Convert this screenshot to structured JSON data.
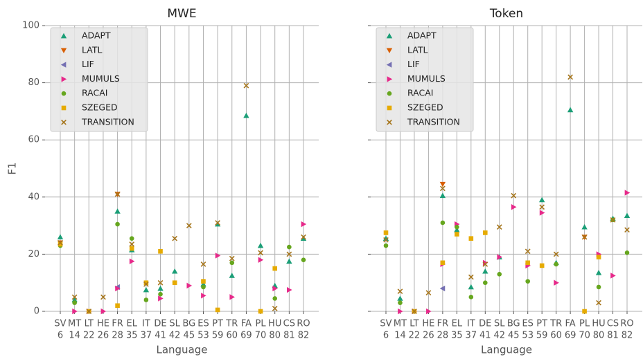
{
  "chart_data": [
    {
      "type": "scatter",
      "title": "MWE",
      "xlabel": "Language",
      "ylabel": "F1",
      "categories": [
        [
          "SV",
          "6"
        ],
        [
          "MT",
          "14"
        ],
        [
          "LT",
          "22"
        ],
        [
          "HE",
          "26"
        ],
        [
          "FR",
          "28"
        ],
        [
          "EL",
          "35"
        ],
        [
          "IT",
          "37"
        ],
        [
          "DE",
          "41"
        ],
        [
          "SL",
          "42"
        ],
        [
          "BG",
          "45"
        ],
        [
          "ES",
          "53"
        ],
        [
          "PT",
          "59"
        ],
        [
          "TR",
          "60"
        ],
        [
          "FA",
          "69"
        ],
        [
          "PL",
          "70"
        ],
        [
          "HU",
          "80"
        ],
        [
          "CS",
          "81"
        ],
        [
          "RO",
          "82"
        ]
      ],
      "ylim": [
        0,
        100
      ],
      "yticks": [
        0,
        20,
        40,
        60,
        80,
        100
      ],
      "grid": true,
      "legend": "upper left",
      "series": [
        {
          "name": "ADAPT",
          "color": "#1b9e77",
          "marker": "triangle-up",
          "values": [
            26,
            4,
            null,
            null,
            35,
            21.5,
            7.5,
            8,
            14,
            null,
            9.5,
            30.5,
            12.5,
            68.5,
            23,
            9,
            17.5,
            25.5
          ]
        },
        {
          "name": "LATL",
          "color": "#d95f02",
          "marker": "triangle-down",
          "values": [
            24,
            null,
            null,
            null,
            41,
            null,
            null,
            null,
            null,
            null,
            null,
            null,
            null,
            null,
            null,
            null,
            null,
            null
          ]
        },
        {
          "name": "LIF",
          "color": "#7570b3",
          "marker": "triangle-left",
          "values": [
            null,
            null,
            null,
            null,
            8.5,
            null,
            null,
            null,
            null,
            null,
            null,
            null,
            null,
            null,
            null,
            null,
            null,
            null
          ]
        },
        {
          "name": "MUMULS",
          "color": "#e7298a",
          "marker": "triangle-right",
          "values": [
            null,
            0,
            0,
            0,
            8,
            17.5,
            null,
            4.5,
            null,
            9,
            5.5,
            19.5,
            5,
            null,
            18,
            8,
            7.5,
            30.5
          ]
        },
        {
          "name": "RACAI",
          "color": "#66a61e",
          "marker": "circle",
          "values": [
            23,
            3,
            null,
            null,
            30.5,
            25.5,
            4,
            6,
            10,
            null,
            8.5,
            null,
            17,
            null,
            null,
            4.5,
            22.5,
            18
          ]
        },
        {
          "name": "SZEGED",
          "color": "#e6ab02",
          "marker": "square",
          "values": [
            23.5,
            null,
            0,
            null,
            2,
            22,
            10,
            21,
            10,
            null,
            10.5,
            0.5,
            null,
            null,
            0,
            15,
            null,
            null
          ]
        },
        {
          "name": "TRANSITION",
          "color": "#a6761d",
          "marker": "x",
          "values": [
            24,
            5,
            0,
            5,
            41,
            23.5,
            9.5,
            10,
            25.5,
            30,
            16.5,
            31,
            18.5,
            79,
            20.5,
            1,
            20,
            26
          ]
        }
      ]
    },
    {
      "type": "scatter",
      "title": "Token",
      "xlabel": "Language",
      "categories": [
        [
          "SV",
          "6"
        ],
        [
          "MT",
          "14"
        ],
        [
          "LT",
          "22"
        ],
        [
          "HE",
          "26"
        ],
        [
          "FR",
          "28"
        ],
        [
          "EL",
          "35"
        ],
        [
          "IT",
          "37"
        ],
        [
          "DE",
          "41"
        ],
        [
          "SL",
          "42"
        ],
        [
          "BG",
          "45"
        ],
        [
          "ES",
          "53"
        ],
        [
          "PT",
          "59"
        ],
        [
          "TR",
          "60"
        ],
        [
          "FA",
          "69"
        ],
        [
          "PL",
          "70"
        ],
        [
          "HU",
          "80"
        ],
        [
          "CS",
          "81"
        ],
        [
          "RO",
          "82"
        ]
      ],
      "ylim": [
        0,
        100
      ],
      "grid": true,
      "legend": "upper left",
      "series": [
        {
          "name": "ADAPT",
          "color": "#1b9e77",
          "marker": "triangle-up",
          "values": [
            25.5,
            4.5,
            null,
            null,
            40.5,
            28.5,
            8.5,
            14,
            19,
            null,
            null,
            39,
            17,
            70.5,
            29.5,
            13.5,
            32.5,
            33.5
          ]
        },
        {
          "name": "LATL",
          "color": "#d95f02",
          "marker": "triangle-down",
          "values": [
            null,
            null,
            null,
            null,
            44.5,
            null,
            null,
            null,
            null,
            null,
            null,
            null,
            null,
            null,
            26,
            null,
            null,
            null
          ]
        },
        {
          "name": "LIF",
          "color": "#7570b3",
          "marker": "triangle-left",
          "values": [
            null,
            null,
            null,
            null,
            8,
            null,
            null,
            null,
            null,
            null,
            null,
            null,
            null,
            null,
            null,
            null,
            null,
            null
          ]
        },
        {
          "name": "MUMULS",
          "color": "#e7298a",
          "marker": "triangle-right",
          "values": [
            null,
            0,
            0,
            0,
            16.5,
            30.5,
            null,
            17,
            19,
            36.5,
            16,
            34.5,
            10,
            null,
            null,
            20,
            12.5,
            41.5
          ]
        },
        {
          "name": "RACAI",
          "color": "#66a61e",
          "marker": "circle",
          "values": [
            23,
            3,
            null,
            null,
            31,
            29.5,
            5,
            10,
            13,
            null,
            10.5,
            null,
            16.5,
            null,
            null,
            8.5,
            32,
            20.5
          ]
        },
        {
          "name": "SZEGED",
          "color": "#e6ab02",
          "marker": "square",
          "values": [
            27.5,
            null,
            0,
            null,
            17,
            27,
            25.5,
            27.5,
            null,
            null,
            17,
            16,
            null,
            null,
            0,
            19,
            null,
            null
          ]
        },
        {
          "name": "TRANSITION",
          "color": "#a6761d",
          "marker": "x",
          "values": [
            25,
            7,
            0,
            6.5,
            43,
            null,
            12,
            16.5,
            29.5,
            40.5,
            21,
            36.5,
            20,
            82,
            26,
            3,
            32,
            28.5
          ]
        }
      ]
    }
  ]
}
